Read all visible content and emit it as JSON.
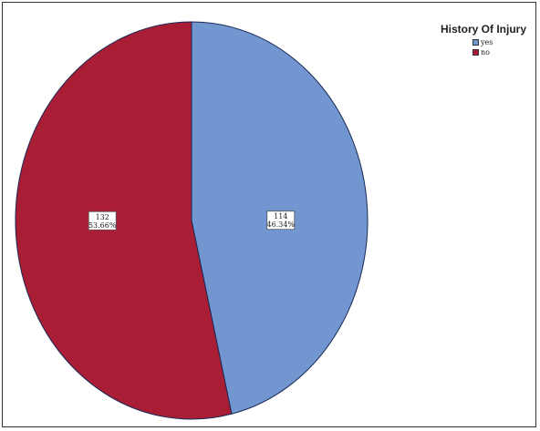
{
  "chart_data": {
    "type": "pie",
    "legend_title": "History Of Injury",
    "legend_position": "top-right",
    "series": [
      {
        "name": "yes",
        "count": "114",
        "percent_label": "46.34%",
        "value": 114,
        "color": "#7196d0"
      },
      {
        "name": "no",
        "count": "132",
        "percent_label": "53.66%",
        "value": 132,
        "color": "#a91d35"
      }
    ]
  }
}
